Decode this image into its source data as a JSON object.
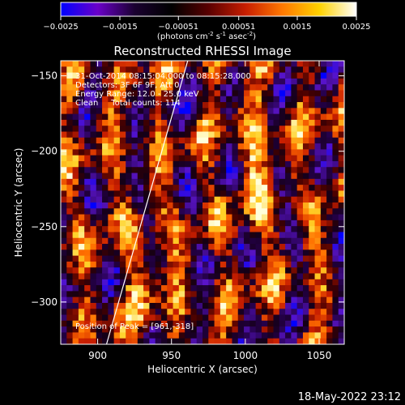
{
  "chart_data": {
    "type": "heatmap",
    "title": "Reconstructed RHESSI Image",
    "xlabel": "Heliocentric X (arcsec)",
    "ylabel": "Heliocentric Y (arcsec)",
    "xlim": [
      875,
      1067
    ],
    "ylim": [
      -328,
      -140
    ],
    "xticks": [
      900,
      950,
      1000,
      1050
    ],
    "yticks": [
      -150,
      -200,
      -250,
      -300
    ],
    "colorbar": {
      "range": [
        -0.0025,
        0.0025
      ],
      "ticks": [
        -0.0025,
        -0.0015,
        -0.00051,
        0.00051,
        0.0015,
        0.0025
      ],
      "tick_labels": [
        "-0.0025",
        "-0.0015",
        "-0.00051",
        "0.00051",
        "0.0015",
        "0.0025"
      ],
      "unit_parts": [
        "(photons cm",
        "-2",
        " s",
        "-1",
        " asec",
        "-2",
        ")"
      ],
      "colors": [
        "#0000ff",
        "#6a00c8",
        "#1a0030",
        "#000000",
        "#5a0000",
        "#c81e00",
        "#ff7800",
        "#ffd200",
        "#ffffff"
      ]
    },
    "annotations": [
      "31-Oct-2014 08:15:04.000 to 08:15:28.000",
      "Detectors: 3F 6F 9F, Att 0",
      "Energy Range: 12.0 - 25.0 keV",
      "Clean     Total counts: 114"
    ],
    "peak_label": "Position of Peak = [961,-318]",
    "limb_line": {
      "x": [
        906,
        961
      ],
      "y": [
        -328,
        -140
      ]
    },
    "footer_date": "18-May-2022 23:12"
  }
}
